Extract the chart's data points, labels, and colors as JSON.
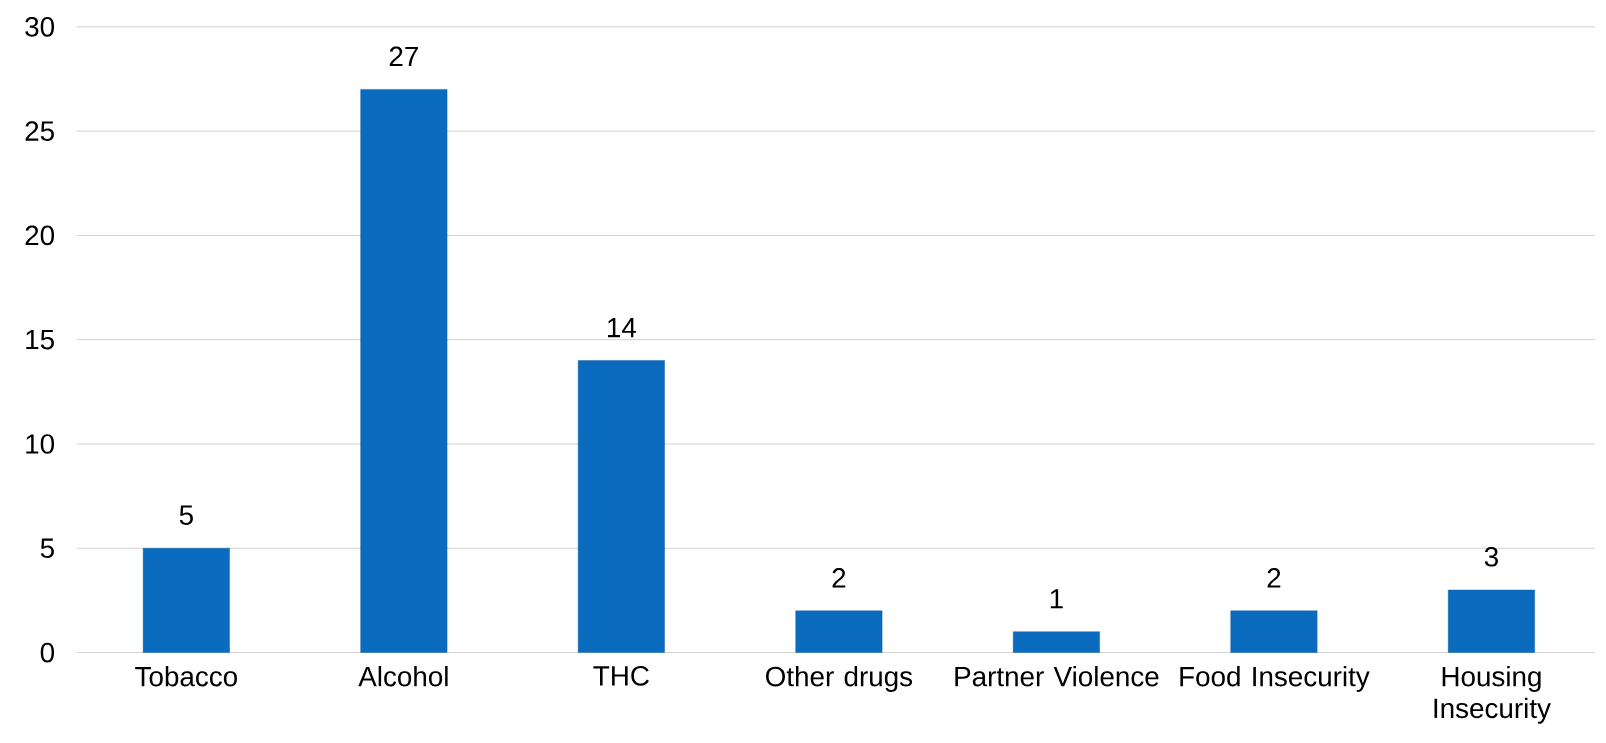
{
  "chart_data": {
    "type": "bar",
    "categories": [
      "Tobacco",
      "Alcohol",
      "THC",
      "Other drugs",
      "Partner Violence",
      "Food Insecurity",
      "Housing Insecurity"
    ],
    "values": [
      5,
      27,
      14,
      2,
      1,
      2,
      3
    ],
    "color": "#0b6bbf",
    "ylim": [
      0,
      30
    ],
    "yticks": [
      0,
      5,
      10,
      15,
      20,
      25,
      30
    ],
    "grid": "y",
    "data_labels": true
  }
}
